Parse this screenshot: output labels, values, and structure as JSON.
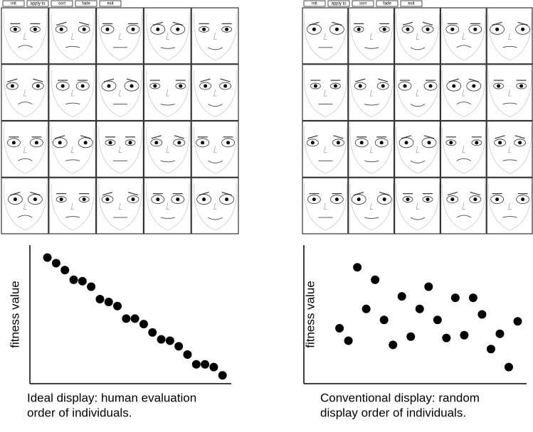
{
  "toolbars": [
    [
      "init",
      "apply to",
      "sort",
      "fade",
      "exit"
    ],
    [
      "init",
      "apply to",
      "sort",
      "fade",
      "exit"
    ]
  ],
  "chart_data": [
    {
      "type": "scatter",
      "y_label": "fitness value",
      "caption": [
        "Ideal display: human evaluation",
        "order of individuals."
      ],
      "x": [
        1,
        2,
        3,
        4,
        5,
        6,
        7,
        8,
        9,
        10,
        11,
        12,
        13,
        14,
        15,
        16,
        17,
        18,
        19,
        20,
        21
      ],
      "values": [
        91,
        87,
        82,
        75,
        74,
        70,
        61,
        59,
        56,
        47,
        47,
        43,
        37,
        32,
        31,
        27,
        21,
        14,
        14,
        12,
        6
      ],
      "xlim": [
        -1,
        22
      ],
      "ylim": [
        0,
        100
      ],
      "color": "#000000"
    },
    {
      "type": "scatter",
      "y_label": "fitness value",
      "caption": [
        "Conventional display: random",
        "display order of individuals."
      ],
      "x": [
        1,
        2,
        3,
        4,
        5,
        6,
        7,
        8,
        9,
        10,
        11,
        12,
        13,
        14,
        15,
        16,
        17,
        18,
        19,
        20,
        21
      ],
      "values": [
        40,
        31,
        84,
        54,
        75,
        46,
        28,
        63,
        34,
        54,
        70,
        46,
        33,
        62,
        35,
        62,
        50,
        25,
        36,
        12,
        45
      ],
      "xlim": [
        -3,
        22
      ],
      "ylim": [
        0,
        100
      ],
      "color": "#000000"
    }
  ]
}
